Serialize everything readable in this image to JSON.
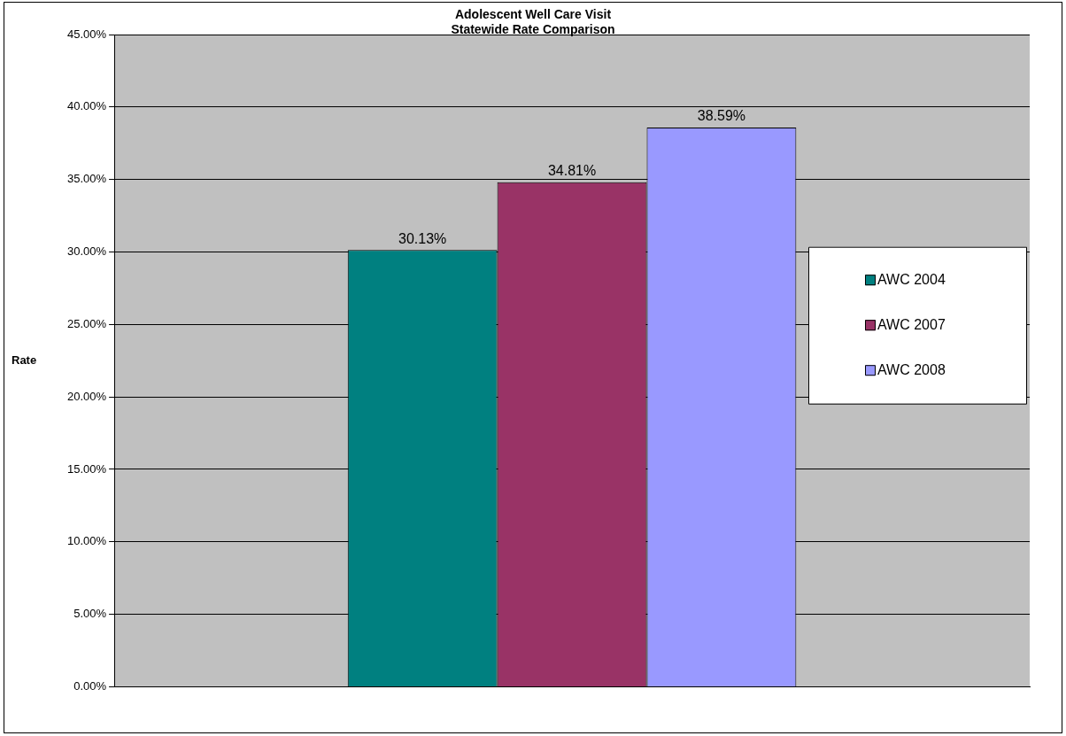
{
  "chart_data": {
    "type": "bar",
    "title": "Adolescent Well Care Visit",
    "subtitle": "Statewide Rate Comparison",
    "ylabel": "Rate",
    "categories": [
      null
    ],
    "series": [
      {
        "name": "AWC 2004",
        "color": "#008080",
        "values": [
          30.13
        ],
        "value_labels": [
          "30.13%"
        ]
      },
      {
        "name": "AWC 2007",
        "color": "#993366",
        "values": [
          34.81
        ],
        "value_labels": [
          "34.81%"
        ]
      },
      {
        "name": "AWC 2008",
        "color": "#9999ff",
        "values": [
          38.59
        ],
        "value_labels": [
          "38.59%"
        ]
      }
    ],
    "ylim": [
      0,
      45
    ],
    "yticks": [
      {
        "value": 0,
        "label": "0.00%"
      },
      {
        "value": 5,
        "label": "5.00%"
      },
      {
        "value": 10,
        "label": "10.00%"
      },
      {
        "value": 15,
        "label": "15.00%"
      },
      {
        "value": 20,
        "label": "20.00%"
      },
      {
        "value": 25,
        "label": "25.00%"
      },
      {
        "value": 30,
        "label": "30.00%"
      },
      {
        "value": 35,
        "label": "35.00%"
      },
      {
        "value": 40,
        "label": "40.00%"
      },
      {
        "value": 45,
        "label": "45.00%"
      }
    ],
    "grid": "y",
    "legend": "right"
  }
}
